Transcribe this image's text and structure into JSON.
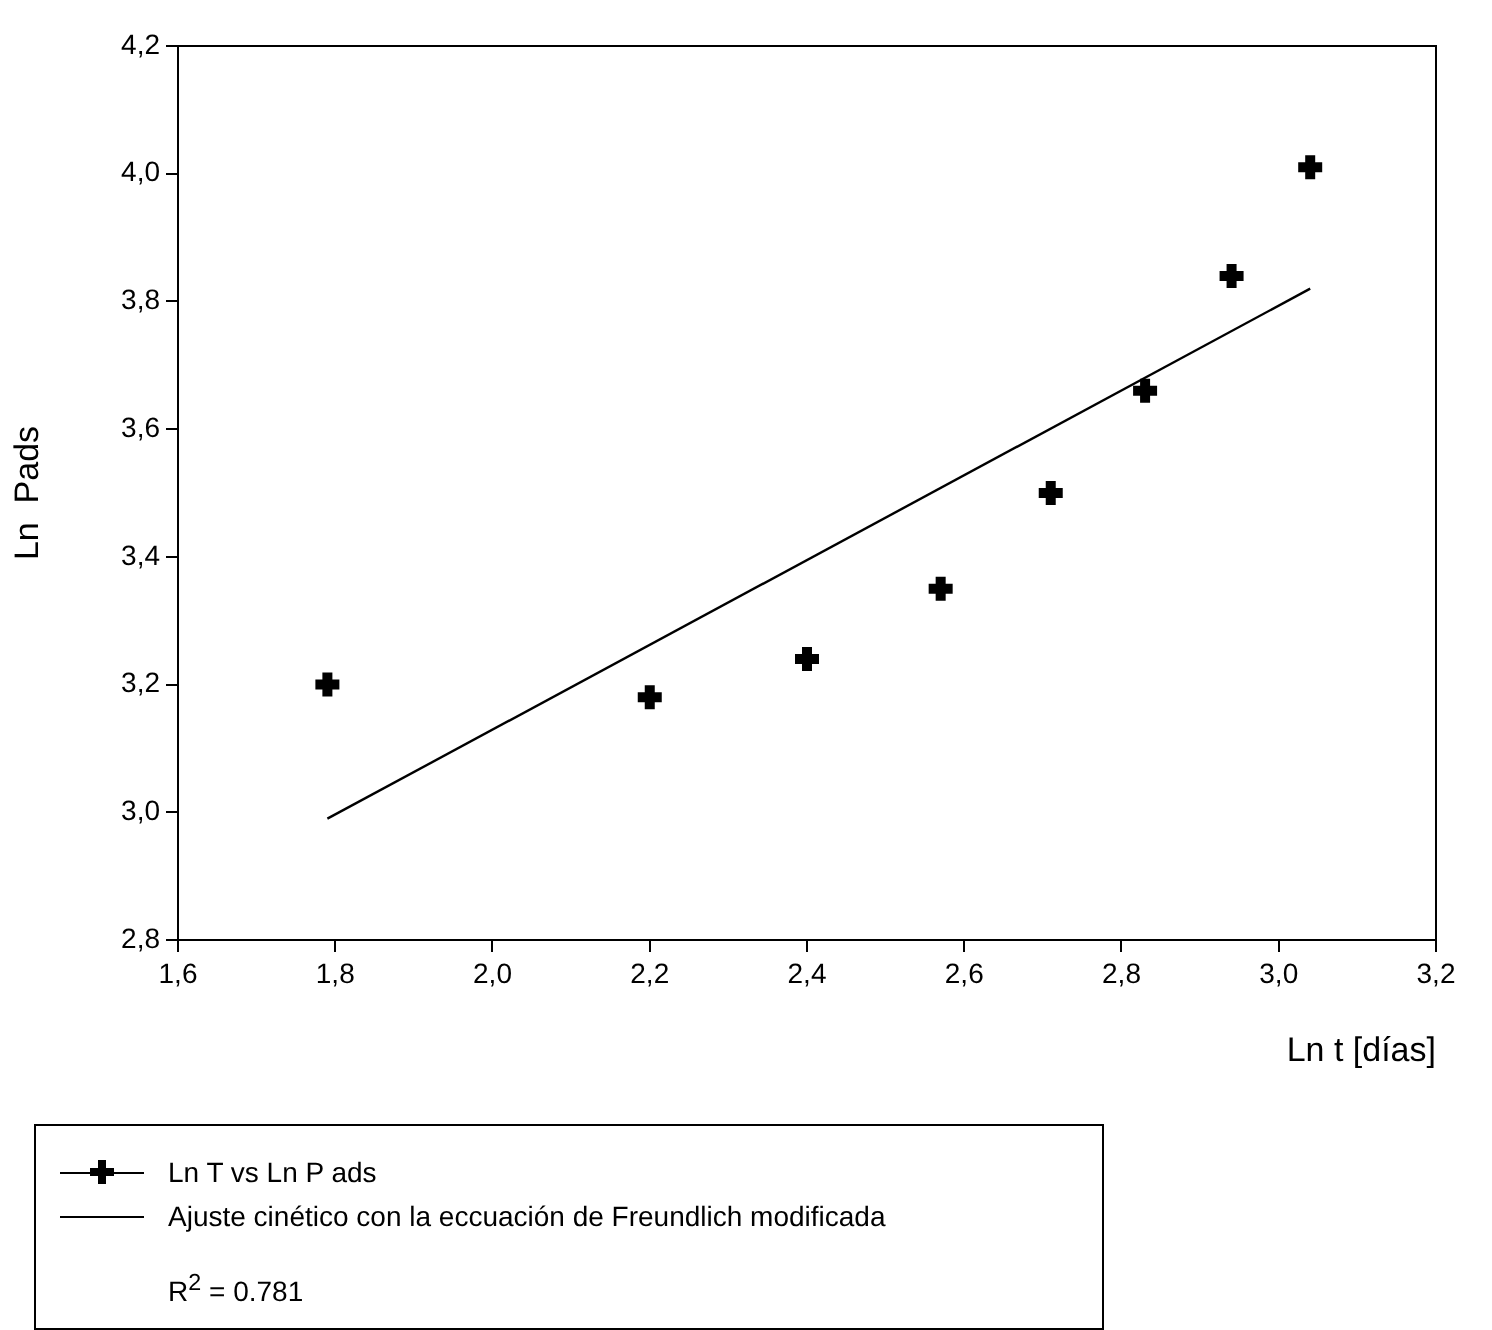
{
  "chart_data": {
    "type": "scatter",
    "xlabel": "Ln t [días]",
    "ylabel": "Ln  Pads",
    "x": [
      1.79,
      2.2,
      2.4,
      2.57,
      2.71,
      2.83,
      2.94,
      3.04
    ],
    "series": [
      {
        "name": "Ln T vs Ln P ads",
        "color": "#000000",
        "values": [
          3.2,
          3.18,
          3.24,
          3.35,
          3.5,
          3.66,
          3.84,
          4.01
        ]
      },
      {
        "name": "Ajuste cinético con la eccuación de Freundlich modificada",
        "type": "line",
        "marker": "none",
        "color": "#000000",
        "x": [
          1.79,
          3.04
        ],
        "values": [
          2.99,
          3.82
        ]
      }
    ],
    "xlim": [
      1.6,
      3.2
    ],
    "ylim": [
      2.8,
      4.2
    ],
    "xticks": [
      {
        "value": 1.6,
        "label": "1,6"
      },
      {
        "value": 1.8,
        "label": "1,8"
      },
      {
        "value": 2.0,
        "label": "2,0"
      },
      {
        "value": 2.2,
        "label": "2,2"
      },
      {
        "value": 2.4,
        "label": "2,4"
      },
      {
        "value": 2.6,
        "label": "2,6"
      },
      {
        "value": 2.8,
        "label": "2,8"
      },
      {
        "value": 3.0,
        "label": "3,0"
      },
      {
        "value": 3.2,
        "label": "3,2"
      }
    ],
    "yticks": [
      {
        "value": 2.8,
        "label": "2,8"
      },
      {
        "value": 3.0,
        "label": "3,0"
      },
      {
        "value": 3.2,
        "label": "3,2"
      },
      {
        "value": 3.4,
        "label": "3,4"
      },
      {
        "value": 3.6,
        "label": "3,6"
      },
      {
        "value": 3.8,
        "label": "3,8"
      },
      {
        "value": 4.0,
        "label": "4,0"
      },
      {
        "value": 4.2,
        "label": "4,2"
      }
    ],
    "grid": false,
    "legend": "bottom",
    "marker": "cross",
    "line_style": "solid",
    "annotations": [
      "R$^{2}$ = 0.781"
    ]
  }
}
